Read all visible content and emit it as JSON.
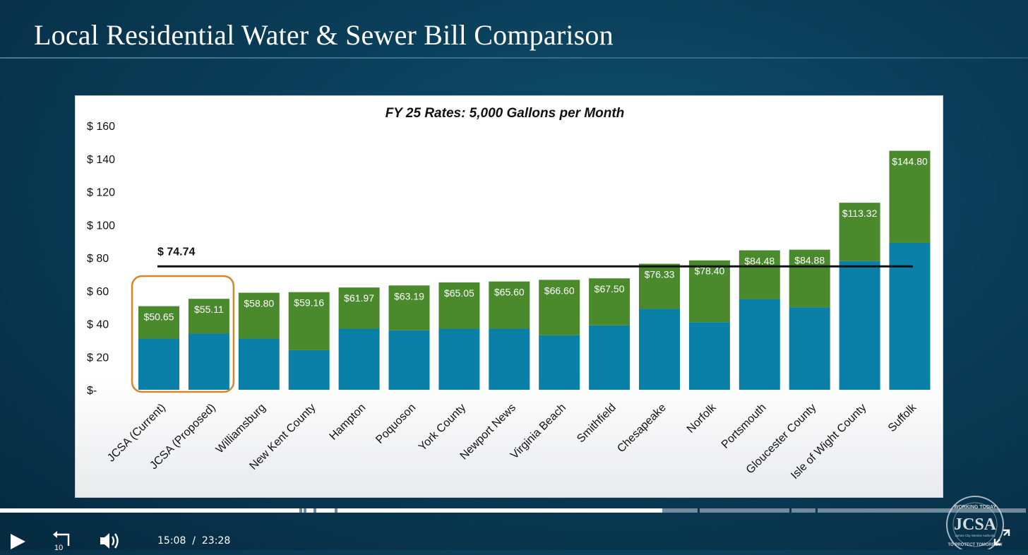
{
  "slide": {
    "title": "Local Residential Water & Sewer Bill Comparison"
  },
  "chart_data": {
    "type": "bar",
    "stacked": true,
    "title": "FY 25 Rates: 5,000 Gallons per Month",
    "categories": [
      "JCSA (Current)",
      "JCSA (Proposed)",
      "Williamsburg",
      "New Kent County",
      "Hampton",
      "Poquoson",
      "York County",
      "Newport News",
      "Virginia Beach",
      "Smithfield",
      "Chesapeake",
      "Norfolk",
      "Portsmouth",
      "Gloucester County",
      "Isle of Wight County",
      "Suffolk"
    ],
    "series": [
      {
        "values": [
          31,
          34,
          31,
          24,
          37,
          36,
          37,
          37,
          33,
          39,
          49,
          41,
          55,
          50,
          78,
          89
        ],
        "color": "#0a7fa8"
      },
      {
        "values": [
          19.65,
          21.11,
          27.8,
          35.16,
          24.97,
          27.19,
          28.05,
          28.6,
          33.6,
          28.5,
          27.33,
          37.4,
          29.48,
          34.88,
          35.32,
          55.8
        ],
        "color": "#4a8a2c"
      }
    ],
    "total_labels": [
      "$50.65",
      "$55.11",
      "$58.80",
      "$59.16",
      "$61.97",
      "$63.19",
      "$65.05",
      "$65.60",
      "$66.60",
      "$67.50",
      "$76.33",
      "$78.40",
      "$84.48",
      "$84.88",
      "$113.32",
      "$144.80"
    ],
    "y_ticks": [
      {
        "value": 0,
        "label": "$-"
      },
      {
        "value": 20,
        "label": "$ 20"
      },
      {
        "value": 40,
        "label": "$ 40"
      },
      {
        "value": 60,
        "label": "$ 60"
      },
      {
        "value": 80,
        "label": "$ 80"
      },
      {
        "value": 100,
        "label": "$ 100"
      },
      {
        "value": 120,
        "label": "$ 120"
      },
      {
        "value": 140,
        "label": "$ 140"
      },
      {
        "value": 160,
        "label": "$ 160"
      }
    ],
    "ylim": [
      0,
      160
    ],
    "reference_line": {
      "value": 74.74,
      "label": "$ 74.74"
    },
    "highlight": {
      "categories": [
        0,
        1
      ],
      "color": "#d9842a"
    }
  },
  "player": {
    "time_current": "15:08",
    "time_separator": "/",
    "time_total": "23:28",
    "progress_fraction": 0.644,
    "buffered_fraction": 0.998,
    "rewind_seconds": "10",
    "play_icon": "play-icon",
    "rewind_icon": "rewind-10-icon",
    "volume_icon": "volume-icon",
    "fullscreen_icon": "fullscreen-icon"
  },
  "logo": {
    "text_main": "JCSA",
    "text_top": "WORKING TODAY",
    "text_bottom": "TO PROTECT TOMORROW",
    "text_sub": "James City Service Authority"
  }
}
